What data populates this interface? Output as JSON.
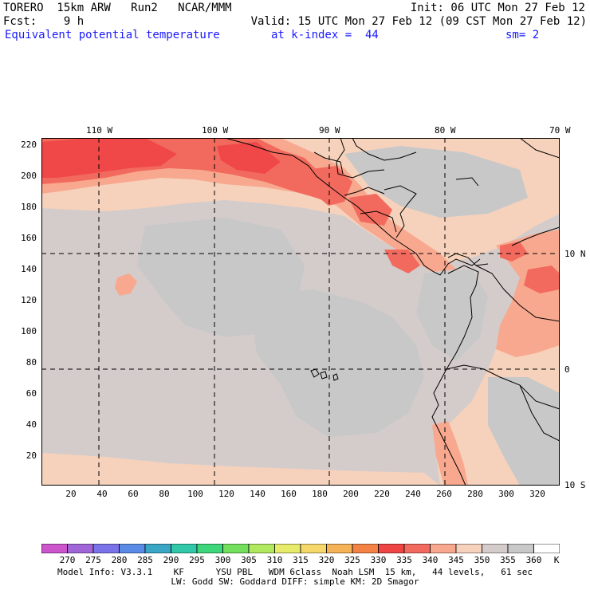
{
  "header": {
    "model": "TORERO  15km ARW   Run2   NCAR/MMM",
    "init": "Init: 06 UTC Mon 27 Feb 12",
    "fcst": "Fcst:    9 h",
    "valid": "Valid: 15 UTC Mon 27 Feb 12 (09 CST Mon 27 Feb 12)",
    "field": "Equivalent potential temperature",
    "level": "at k-index =  44",
    "smoothing": "sm= 2"
  },
  "map": {
    "top_lon_labels": [
      "110 W",
      "100 W",
      "90 W",
      "80 W",
      "70 W"
    ],
    "right_lat_labels": [
      "10 N",
      "0",
      "10 S"
    ],
    "y_axis_ticks": [
      "220",
      "200",
      "180",
      "160",
      "140",
      "120",
      "100",
      "80",
      "60",
      "40",
      "20"
    ],
    "x_axis_ticks": [
      "20",
      "40",
      "60",
      "80",
      "100",
      "120",
      "140",
      "160",
      "180",
      "200",
      "220",
      "240",
      "260",
      "280",
      "300",
      "320"
    ],
    "colors": {
      "c340": "#f6d2bc",
      "c345": "#d4cccb",
      "c350": "#c8c8c8",
      "c335": "#f8a88e",
      "c330": "#f26a5e",
      "c325": "#f04848",
      "coast": "#000000"
    }
  },
  "colorbar": {
    "unit": "K",
    "levels": [
      "270",
      "275",
      "280",
      "285",
      "290",
      "295",
      "300",
      "305",
      "310",
      "315",
      "320",
      "325",
      "330",
      "335",
      "340",
      "345",
      "350",
      "355",
      "360"
    ],
    "colors": [
      "#cc55cc",
      "#a066d8",
      "#7a72e8",
      "#5a8be6",
      "#3aa6c6",
      "#30c8a8",
      "#3ed67a",
      "#72e05c",
      "#b0e860",
      "#e6ec6a",
      "#f6d86a",
      "#f6b256",
      "#f48244",
      "#ee4444",
      "#f26a5e",
      "#f8a88e",
      "#f6d2bc",
      "#d4cccb",
      "#c8c8c8",
      "#ffffff"
    ]
  },
  "footer": {
    "line1": "Model Info: V3.3.1    KF      YSU PBL   WDM 6class  Noah LSM  15 km,   44 levels,   61 sec",
    "line2": "LW: Godd SW: Goddard DIFF: simple KM: 2D Smagor"
  }
}
